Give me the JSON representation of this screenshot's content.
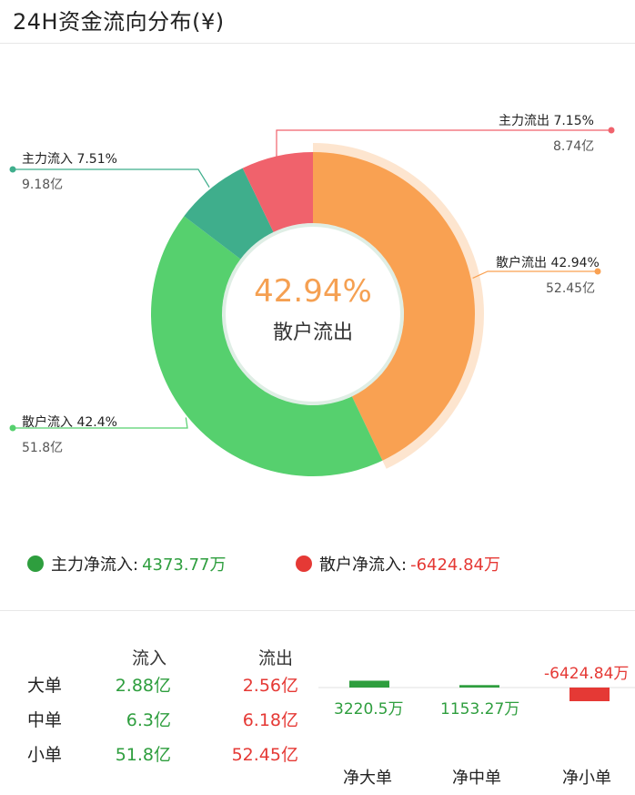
{
  "title": "24H资金流向分布(¥)",
  "colors": {
    "main_in": "#3FAE8C",
    "main_out": "#F0626C",
    "retail_out": "#F9A152",
    "retail_in": "#56D06E",
    "green_text": "#2e9e3e",
    "red_text": "#e53935"
  },
  "chart_data": [
    {
      "type": "pie",
      "variant": "donut",
      "title": "",
      "slices": [
        {
          "name": "散户流出",
          "percent": 42.94,
          "value_label": "52.45亿",
          "color": "#F9A152"
        },
        {
          "name": "散户流入",
          "percent": 42.4,
          "value_label": "51.8亿",
          "color": "#56D06E"
        },
        {
          "name": "主力流入",
          "percent": 7.51,
          "value_label": "9.18亿",
          "color": "#3FAE8C"
        },
        {
          "name": "主力流出",
          "percent": 7.15,
          "value_label": "8.74亿",
          "color": "#F0626C"
        }
      ],
      "labels": {
        "main_out": "主力流出 7.15%",
        "main_out_value": "8.74亿",
        "main_in": "主力流入 7.51%",
        "main_in_value": "9.18亿",
        "retail_out": "散户流出 42.94%",
        "retail_out_value": "52.45亿",
        "retail_in": "散户流入 42.4%",
        "retail_in_value": "51.8亿"
      },
      "highlighted": "散户流出",
      "center": {
        "percent": "42.94%",
        "name": "散户流出"
      }
    },
    {
      "type": "bar",
      "categories": [
        "净大单",
        "净中单",
        "净小单"
      ],
      "values": [
        3220.5,
        1153.27,
        -6424.84
      ],
      "value_labels": [
        "3220.5万",
        "1153.27万",
        "-6424.84万"
      ],
      "colors": [
        "#2e9e3e",
        "#2e9e3e",
        "#e53935"
      ],
      "unit": "万"
    }
  ],
  "legend": {
    "main_label": "主力净流入:",
    "main_value": "4373.77万",
    "retail_label": "散户净流入:",
    "retail_value": "-6424.84万"
  },
  "table": {
    "col_in": "流入",
    "col_out": "流出",
    "rows": [
      {
        "name": "大单",
        "in": "2.88亿",
        "out": "2.56亿"
      },
      {
        "name": "中单",
        "in": "6.3亿",
        "out": "6.18亿"
      },
      {
        "name": "小单",
        "in": "51.8亿",
        "out": "52.45亿"
      }
    ]
  }
}
